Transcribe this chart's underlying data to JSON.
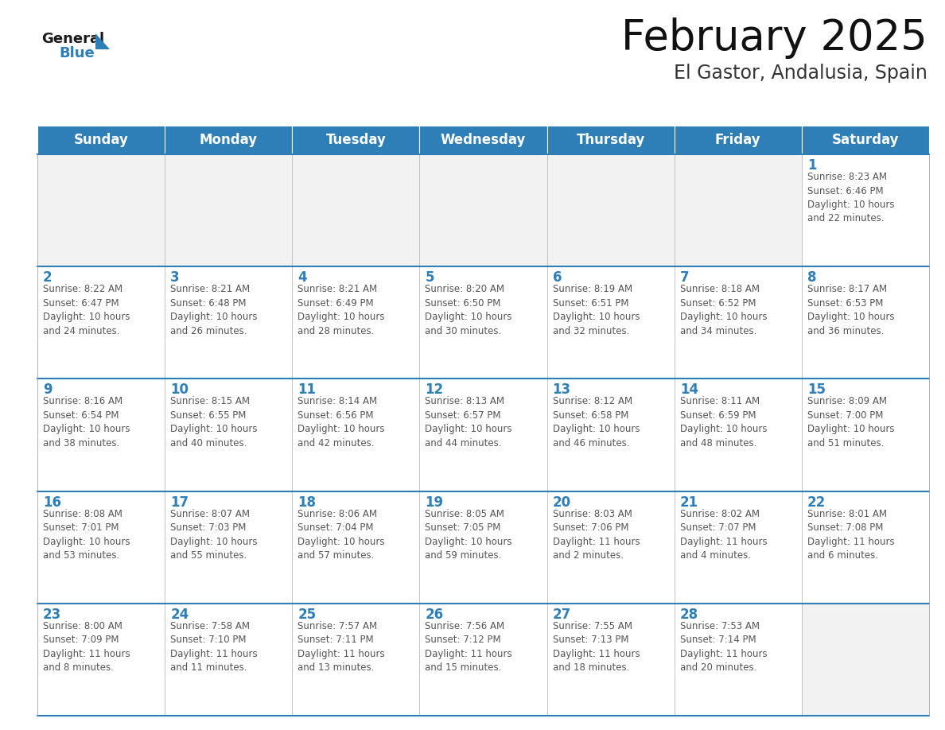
{
  "title": "February 2025",
  "subtitle": "El Gastor, Andalusia, Spain",
  "header_bg": "#2E7EB8",
  "header_text": "#FFFFFF",
  "cell_bg": "#FFFFFF",
  "empty_cell_bg": "#F2F2F2",
  "day_number_color": "#2E7EB8",
  "text_color": "#555555",
  "line_color": "#2E7EB8",
  "border_color": "#AAAAAA",
  "days_of_week": [
    "Sunday",
    "Monday",
    "Tuesday",
    "Wednesday",
    "Thursday",
    "Friday",
    "Saturday"
  ],
  "weeks": [
    [
      {
        "day": null,
        "info": null
      },
      {
        "day": null,
        "info": null
      },
      {
        "day": null,
        "info": null
      },
      {
        "day": null,
        "info": null
      },
      {
        "day": null,
        "info": null
      },
      {
        "day": null,
        "info": null
      },
      {
        "day": 1,
        "info": "Sunrise: 8:23 AM\nSunset: 6:46 PM\nDaylight: 10 hours\nand 22 minutes."
      }
    ],
    [
      {
        "day": 2,
        "info": "Sunrise: 8:22 AM\nSunset: 6:47 PM\nDaylight: 10 hours\nand 24 minutes."
      },
      {
        "day": 3,
        "info": "Sunrise: 8:21 AM\nSunset: 6:48 PM\nDaylight: 10 hours\nand 26 minutes."
      },
      {
        "day": 4,
        "info": "Sunrise: 8:21 AM\nSunset: 6:49 PM\nDaylight: 10 hours\nand 28 minutes."
      },
      {
        "day": 5,
        "info": "Sunrise: 8:20 AM\nSunset: 6:50 PM\nDaylight: 10 hours\nand 30 minutes."
      },
      {
        "day": 6,
        "info": "Sunrise: 8:19 AM\nSunset: 6:51 PM\nDaylight: 10 hours\nand 32 minutes."
      },
      {
        "day": 7,
        "info": "Sunrise: 8:18 AM\nSunset: 6:52 PM\nDaylight: 10 hours\nand 34 minutes."
      },
      {
        "day": 8,
        "info": "Sunrise: 8:17 AM\nSunset: 6:53 PM\nDaylight: 10 hours\nand 36 minutes."
      }
    ],
    [
      {
        "day": 9,
        "info": "Sunrise: 8:16 AM\nSunset: 6:54 PM\nDaylight: 10 hours\nand 38 minutes."
      },
      {
        "day": 10,
        "info": "Sunrise: 8:15 AM\nSunset: 6:55 PM\nDaylight: 10 hours\nand 40 minutes."
      },
      {
        "day": 11,
        "info": "Sunrise: 8:14 AM\nSunset: 6:56 PM\nDaylight: 10 hours\nand 42 minutes."
      },
      {
        "day": 12,
        "info": "Sunrise: 8:13 AM\nSunset: 6:57 PM\nDaylight: 10 hours\nand 44 minutes."
      },
      {
        "day": 13,
        "info": "Sunrise: 8:12 AM\nSunset: 6:58 PM\nDaylight: 10 hours\nand 46 minutes."
      },
      {
        "day": 14,
        "info": "Sunrise: 8:11 AM\nSunset: 6:59 PM\nDaylight: 10 hours\nand 48 minutes."
      },
      {
        "day": 15,
        "info": "Sunrise: 8:09 AM\nSunset: 7:00 PM\nDaylight: 10 hours\nand 51 minutes."
      }
    ],
    [
      {
        "day": 16,
        "info": "Sunrise: 8:08 AM\nSunset: 7:01 PM\nDaylight: 10 hours\nand 53 minutes."
      },
      {
        "day": 17,
        "info": "Sunrise: 8:07 AM\nSunset: 7:03 PM\nDaylight: 10 hours\nand 55 minutes."
      },
      {
        "day": 18,
        "info": "Sunrise: 8:06 AM\nSunset: 7:04 PM\nDaylight: 10 hours\nand 57 minutes."
      },
      {
        "day": 19,
        "info": "Sunrise: 8:05 AM\nSunset: 7:05 PM\nDaylight: 10 hours\nand 59 minutes."
      },
      {
        "day": 20,
        "info": "Sunrise: 8:03 AM\nSunset: 7:06 PM\nDaylight: 11 hours\nand 2 minutes."
      },
      {
        "day": 21,
        "info": "Sunrise: 8:02 AM\nSunset: 7:07 PM\nDaylight: 11 hours\nand 4 minutes."
      },
      {
        "day": 22,
        "info": "Sunrise: 8:01 AM\nSunset: 7:08 PM\nDaylight: 11 hours\nand 6 minutes."
      }
    ],
    [
      {
        "day": 23,
        "info": "Sunrise: 8:00 AM\nSunset: 7:09 PM\nDaylight: 11 hours\nand 8 minutes."
      },
      {
        "day": 24,
        "info": "Sunrise: 7:58 AM\nSunset: 7:10 PM\nDaylight: 11 hours\nand 11 minutes."
      },
      {
        "day": 25,
        "info": "Sunrise: 7:57 AM\nSunset: 7:11 PM\nDaylight: 11 hours\nand 13 minutes."
      },
      {
        "day": 26,
        "info": "Sunrise: 7:56 AM\nSunset: 7:12 PM\nDaylight: 11 hours\nand 15 minutes."
      },
      {
        "day": 27,
        "info": "Sunrise: 7:55 AM\nSunset: 7:13 PM\nDaylight: 11 hours\nand 18 minutes."
      },
      {
        "day": 28,
        "info": "Sunrise: 7:53 AM\nSunset: 7:14 PM\nDaylight: 11 hours\nand 20 minutes."
      },
      {
        "day": null,
        "info": null
      }
    ]
  ],
  "logo_general_color": "#1a1a1a",
  "logo_blue_color": "#2E7EB8",
  "title_fontsize": 38,
  "subtitle_fontsize": 17,
  "header_fontsize": 12,
  "day_number_fontsize": 12,
  "info_fontsize": 8.5,
  "fig_width": 11.88,
  "fig_height": 9.18,
  "fig_dpi": 100
}
